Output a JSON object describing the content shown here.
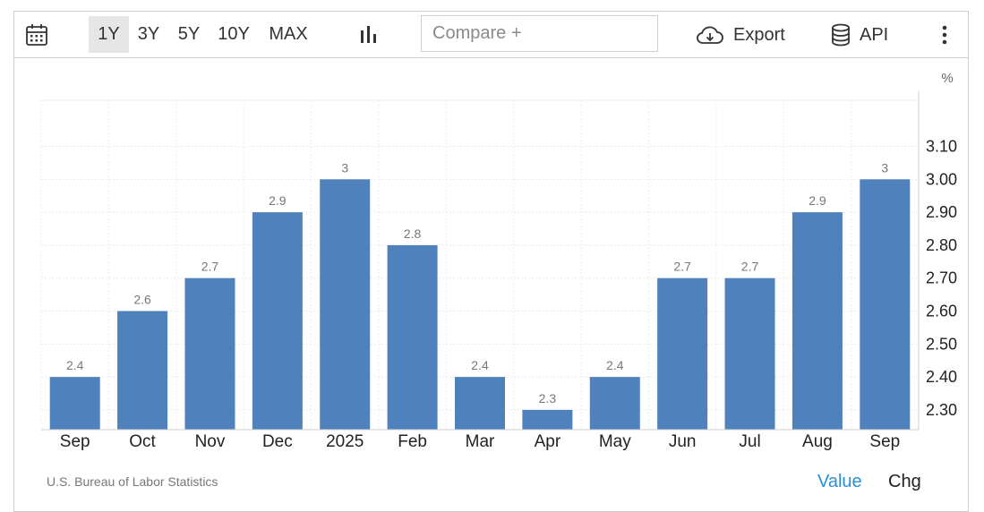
{
  "toolbar": {
    "ranges": [
      "1Y",
      "3Y",
      "5Y",
      "10Y",
      "MAX"
    ],
    "active_range": "1Y",
    "compare_placeholder": "Compare +",
    "export_label": "Export",
    "api_label": "API",
    "icons": [
      "calendar-icon",
      "bar-chart-icon",
      "cloud-download-icon",
      "database-icon",
      "more-vert-icon"
    ]
  },
  "footer": {
    "source": "U.S. Bureau of Labor Statistics",
    "value_label": "Value",
    "chg_label": "Chg"
  },
  "colors": {
    "bar": "#4f81bd",
    "accent": "#2a8fd6"
  },
  "chart_data": {
    "type": "bar",
    "categories": [
      "Sep",
      "Oct",
      "Nov",
      "Dec",
      "2025",
      "Feb",
      "Mar",
      "Apr",
      "May",
      "Jun",
      "Jul",
      "Aug",
      "Sep"
    ],
    "values": [
      2.4,
      2.6,
      2.7,
      2.9,
      3.0,
      2.8,
      2.4,
      2.3,
      2.4,
      2.7,
      2.7,
      2.9,
      3.0
    ],
    "data_labels": [
      "2.4",
      "2.6",
      "2.7",
      "2.9",
      "3",
      "2.8",
      "2.4",
      "2.3",
      "2.4",
      "2.7",
      "2.7",
      "2.9",
      "3"
    ],
    "yticks": [
      "2.30",
      "2.40",
      "2.50",
      "2.60",
      "2.70",
      "2.80",
      "2.90",
      "3.00",
      "3.10"
    ],
    "ylim": [
      2.24,
      3.24
    ],
    "yaxis_unit": "%",
    "yaxis_side": "right",
    "grid": true
  }
}
